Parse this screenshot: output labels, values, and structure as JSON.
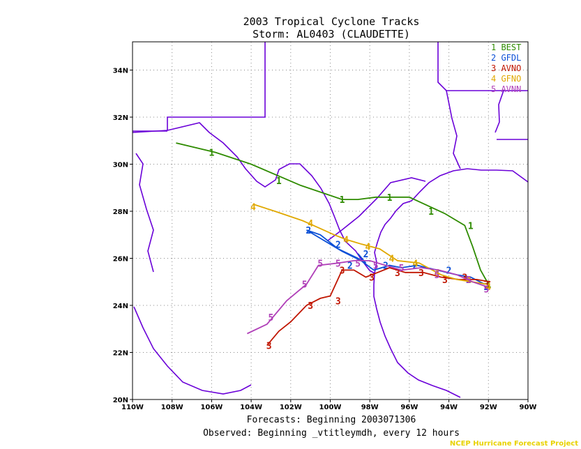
{
  "title": "2003 Tropical Cyclone Tracks",
  "subtitle": "Storm: AL0403 (CLAUDETTE)",
  "footer_line1": "Forecasts: Beginning 2003071306",
  "footer_line2": "Observed: Beginning _vtitleymdh, every 12 hours",
  "credit": "NCEP Hurricane Forecast Project",
  "map": {
    "lon_range": [
      -110,
      -90
    ],
    "lat_range": [
      20,
      35.2
    ],
    "grid": "dotted",
    "x_ticks": [
      "110W",
      "108W",
      "106W",
      "104W",
      "102W",
      "100W",
      "98W",
      "96W",
      "94W",
      "92W",
      "90W"
    ],
    "y_ticks": [
      "20N",
      "22N",
      "24N",
      "26N",
      "28N",
      "30N",
      "32N",
      "34N"
    ],
    "border_color": "#6a00d8"
  },
  "legend": [
    {
      "id": "1",
      "name": "BEST",
      "color": "#2e8b00"
    },
    {
      "id": "2",
      "name": "GFDL",
      "color": "#0a4fd6"
    },
    {
      "id": "3",
      "name": "AVNO",
      "color": "#c01500"
    },
    {
      "id": "4",
      "name": "GFNO",
      "color": "#e0a800"
    },
    {
      "id": "5",
      "name": "AVNN",
      "color": "#b040b8"
    }
  ],
  "tracks": [
    {
      "id": "1",
      "name": "BEST",
      "color": "#2e8b00",
      "points": [
        [
          -92.0,
          24.9
        ],
        [
          -92.4,
          25.5
        ],
        [
          -92.8,
          26.5
        ],
        [
          -93.2,
          27.4
        ],
        [
          -94.2,
          27.9
        ],
        [
          -96.0,
          28.6
        ],
        [
          -97.7,
          28.6
        ],
        [
          -98.6,
          28.5
        ],
        [
          -99.4,
          28.5
        ],
        [
          -101.5,
          29.1
        ],
        [
          -104.0,
          30.0
        ],
        [
          -105.8,
          30.5
        ],
        [
          -107.8,
          30.9
        ]
      ],
      "markers": [
        [
          -92.0,
          24.9
        ],
        [
          -92.9,
          27.4
        ],
        [
          -94.9,
          28.0
        ],
        [
          -97.0,
          28.6
        ],
        [
          -99.4,
          28.5
        ],
        [
          -102.6,
          29.3
        ],
        [
          -106.0,
          30.5
        ]
      ]
    },
    {
      "id": "2",
      "name": "GFDL",
      "color": "#0a4fd6",
      "points": [
        [
          -92.2,
          24.9
        ],
        [
          -92.9,
          25.2
        ],
        [
          -93.6,
          25.3
        ],
        [
          -94.6,
          25.5
        ],
        [
          -95.6,
          25.7
        ],
        [
          -96.4,
          25.6
        ],
        [
          -97.0,
          25.7
        ],
        [
          -97.8,
          25.5
        ],
        [
          -98.6,
          26.0
        ],
        [
          -99.6,
          26.4
        ],
        [
          -100.5,
          27.0
        ],
        [
          -101.2,
          27.2
        ],
        [
          -99.4,
          26.3
        ],
        [
          -98.2,
          25.8
        ],
        [
          -98.6,
          26.2
        ]
      ],
      "markers": [
        [
          -92.1,
          24.8
        ],
        [
          -93.0,
          25.1
        ],
        [
          -94.0,
          25.5
        ],
        [
          -95.7,
          25.7
        ],
        [
          -97.2,
          25.7
        ],
        [
          -98.2,
          26.2
        ],
        [
          -99.6,
          26.6
        ],
        [
          -101.1,
          27.2
        ],
        [
          -99.0,
          25.7
        ]
      ]
    },
    {
      "id": "3",
      "name": "AVNO",
      "color": "#c01500",
      "points": [
        [
          -91.9,
          25.0
        ],
        [
          -92.6,
          25.1
        ],
        [
          -93.5,
          25.1
        ],
        [
          -94.4,
          25.2
        ],
        [
          -95.3,
          25.4
        ],
        [
          -96.2,
          25.4
        ],
        [
          -97.0,
          25.6
        ],
        [
          -97.6,
          25.4
        ],
        [
          -98.2,
          25.2
        ],
        [
          -98.8,
          25.5
        ],
        [
          -99.4,
          25.5
        ],
        [
          -100.0,
          24.4
        ],
        [
          -100.5,
          24.3
        ],
        [
          -101.2,
          24.0
        ],
        [
          -102.0,
          23.3
        ],
        [
          -102.6,
          22.9
        ],
        [
          -103.2,
          22.3
        ]
      ],
      "markers": [
        [
          -92.1,
          24.9
        ],
        [
          -93.2,
          25.2
        ],
        [
          -94.2,
          25.1
        ],
        [
          -95.4,
          25.4
        ],
        [
          -96.6,
          25.4
        ],
        [
          -97.9,
          25.2
        ],
        [
          -99.4,
          25.5
        ],
        [
          -99.6,
          24.2
        ],
        [
          -101.0,
          24.0
        ],
        [
          -103.1,
          22.3
        ]
      ]
    },
    {
      "id": "4",
      "name": "GFNO",
      "color": "#e0a800",
      "points": [
        [
          -92.1,
          24.9
        ],
        [
          -92.8,
          25.0
        ],
        [
          -93.6,
          25.1
        ],
        [
          -94.4,
          25.3
        ],
        [
          -95.5,
          25.8
        ],
        [
          -96.6,
          25.9
        ],
        [
          -97.5,
          26.4
        ],
        [
          -98.4,
          26.6
        ],
        [
          -99.2,
          26.8
        ],
        [
          -99.8,
          27.0
        ],
        [
          -100.6,
          27.3
        ],
        [
          -101.4,
          27.6
        ],
        [
          -102.8,
          28.0
        ],
        [
          -103.9,
          28.3
        ]
      ],
      "markers": [
        [
          -92.0,
          24.8
        ],
        [
          -93.0,
          25.1
        ],
        [
          -94.6,
          25.4
        ],
        [
          -95.7,
          25.8
        ],
        [
          -96.9,
          26.0
        ],
        [
          -98.1,
          26.5
        ],
        [
          -99.2,
          26.8
        ],
        [
          -101.0,
          27.5
        ],
        [
          -103.9,
          28.2
        ]
      ]
    },
    {
      "id": "5",
      "name": "AVNN",
      "color": "#b040b8",
      "points": [
        [
          -92.1,
          24.8
        ],
        [
          -92.8,
          25.0
        ],
        [
          -93.6,
          25.3
        ],
        [
          -94.5,
          25.5
        ],
        [
          -95.4,
          25.6
        ],
        [
          -96.4,
          25.5
        ],
        [
          -97.2,
          25.7
        ],
        [
          -98.0,
          25.9
        ],
        [
          -98.8,
          25.9
        ],
        [
          -99.6,
          25.8
        ],
        [
          -100.6,
          25.7
        ],
        [
          -101.2,
          24.9
        ],
        [
          -102.2,
          24.2
        ],
        [
          -103.2,
          23.2
        ],
        [
          -104.2,
          22.8
        ]
      ],
      "markers": [
        [
          -92.1,
          24.7
        ],
        [
          -93.0,
          25.1
        ],
        [
          -94.6,
          25.3
        ],
        [
          -96.4,
          25.6
        ],
        [
          -97.7,
          25.7
        ],
        [
          -98.6,
          25.8
        ],
        [
          -99.6,
          25.8
        ],
        [
          -100.5,
          25.8
        ],
        [
          -101.3,
          24.9
        ],
        [
          -103.0,
          23.5
        ]
      ]
    }
  ]
}
